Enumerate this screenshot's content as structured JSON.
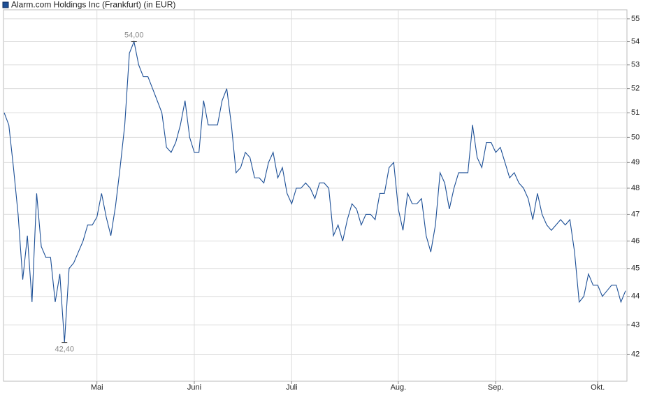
{
  "chart_data": {
    "type": "line",
    "title": "Alarm.com Holdings Inc (Frankfurt) (in EUR)",
    "log_scale": true,
    "grid": true,
    "categories": [
      null,
      null,
      null,
      null,
      null,
      null,
      null,
      null,
      null,
      null,
      null,
      null,
      null,
      null,
      null,
      null,
      null,
      null,
      null,
      null,
      "Mai",
      null,
      null,
      null,
      null,
      null,
      null,
      null,
      null,
      null,
      null,
      null,
      null,
      null,
      null,
      null,
      null,
      null,
      null,
      null,
      null,
      "Juni",
      null,
      null,
      null,
      null,
      null,
      null,
      null,
      null,
      null,
      null,
      null,
      null,
      null,
      null,
      null,
      null,
      null,
      null,
      null,
      null,
      "Juli",
      null,
      null,
      null,
      null,
      null,
      null,
      null,
      null,
      null,
      null,
      null,
      null,
      null,
      null,
      null,
      null,
      null,
      null,
      null,
      null,
      null,
      null,
      "Aug.",
      null,
      null,
      null,
      null,
      null,
      null,
      null,
      null,
      null,
      null,
      null,
      null,
      null,
      null,
      null,
      null,
      null,
      null,
      null,
      null,
      "Sep.",
      null,
      null,
      null,
      null,
      null,
      null,
      null,
      null,
      null,
      null,
      null,
      null,
      null,
      null,
      null,
      null,
      null,
      null,
      null,
      null,
      null,
      "Okt.",
      null,
      null,
      null,
      null,
      null,
      null
    ],
    "series": [
      {
        "name": "Alarm.com Holdings Inc (Frankfurt) (in EUR)",
        "color": "#1c4f96",
        "values": [
          51.0,
          50.5,
          48.8,
          47.0,
          44.6,
          46.2,
          43.8,
          47.8,
          45.8,
          45.4,
          45.4,
          43.8,
          44.8,
          42.4,
          45.0,
          45.2,
          45.6,
          46.0,
          46.6,
          46.6,
          46.9,
          47.8,
          46.9,
          46.2,
          47.3,
          48.8,
          50.5,
          53.5,
          54.0,
          53.0,
          52.5,
          52.5,
          52.0,
          51.5,
          51.0,
          49.6,
          49.4,
          49.8,
          50.5,
          51.5,
          50.0,
          49.4,
          49.4,
          51.5,
          50.5,
          50.5,
          50.5,
          51.5,
          52.0,
          50.5,
          48.6,
          48.8,
          49.4,
          49.2,
          48.4,
          48.4,
          48.2,
          49.0,
          49.4,
          48.4,
          48.8,
          47.8,
          47.4,
          48.0,
          48.0,
          48.2,
          48.0,
          47.6,
          48.2,
          48.2,
          48.0,
          46.2,
          46.6,
          46.0,
          46.8,
          47.4,
          47.2,
          46.6,
          47.0,
          47.0,
          46.8,
          47.8,
          47.8,
          48.8,
          49.0,
          47.2,
          46.4,
          47.8,
          47.4,
          47.4,
          47.6,
          46.2,
          45.6,
          46.6,
          48.6,
          48.2,
          47.2,
          48.0,
          48.6,
          48.6,
          48.6,
          50.5,
          49.2,
          48.8,
          49.8,
          49.8,
          49.4,
          49.6,
          49.0,
          48.4,
          48.6,
          48.2,
          48.0,
          47.6,
          46.8,
          47.8,
          47.0,
          46.6,
          46.4,
          46.6,
          46.8,
          46.6,
          46.8,
          45.6,
          43.8,
          44.0,
          44.8,
          44.4,
          44.4,
          44.0,
          44.2,
          44.4,
          44.4,
          43.8,
          44.2
        ]
      }
    ],
    "annotations": [
      {
        "text": "54,00",
        "value": 54.0
      },
      {
        "text": "42,40",
        "value": 42.4
      }
    ],
    "ylim": [
      41.1,
      55.4
    ],
    "yticks": [
      42,
      43,
      44,
      45,
      46,
      47,
      48,
      49,
      50,
      51,
      52,
      53,
      54,
      55
    ]
  }
}
